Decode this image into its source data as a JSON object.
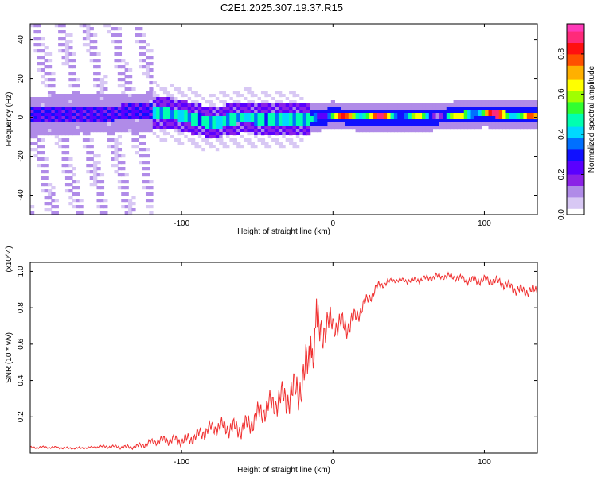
{
  "title": "C2E1.2025.307.19.37.R15",
  "chart_data": [
    {
      "type": "heatmap",
      "xlabel": "Height of straight line (km)",
      "ylabel": "Frequency (Hz)",
      "xlim": [
        -200,
        135
      ],
      "ylim": [
        -50,
        48
      ],
      "x_ticks": [
        -100,
        0,
        100
      ],
      "y_ticks": [
        -40,
        -20,
        0,
        20,
        40
      ],
      "colorbar": {
        "label": "Normalized spectral amplitude",
        "range": [
          0,
          0.95
        ],
        "ticks": [
          0.0,
          0.2,
          0.4,
          0.6,
          0.8
        ],
        "colors": [
          "#ffffff",
          "#d8c8f4",
          "#b08be8",
          "#8b22e6",
          "#5a00ff",
          "#1010ff",
          "#0070ff",
          "#00d8ff",
          "#00ffb0",
          "#30ff30",
          "#a0ff00",
          "#ffff00",
          "#ffb000",
          "#ff5000",
          "#ff1010",
          "#ff2a7a",
          "#ff3ab8"
        ]
      },
      "description_points": {
        "centerline_hz": [
          [
            -200,
            1
          ],
          [
            -150,
            2
          ],
          [
            -120,
            3
          ],
          [
            -100,
            1
          ],
          [
            -80,
            -3
          ],
          [
            -60,
            0
          ],
          [
            -40,
            -1
          ],
          [
            -20,
            -1
          ],
          [
            0,
            1
          ],
          [
            20,
            0
          ],
          [
            40,
            0
          ],
          [
            60,
            0
          ],
          [
            80,
            1
          ],
          [
            100,
            2
          ],
          [
            120,
            1
          ],
          [
            135,
            1
          ]
        ]
      }
    },
    {
      "type": "line",
      "xlabel": "Height of straight line (km)",
      "ylabel": "SNR (10 * v/v)",
      "y_scale_label": "(x10^4)",
      "xlim": [
        -200,
        135
      ],
      "ylim": [
        0.0,
        1.05
      ],
      "x_ticks": [
        -100,
        0,
        100
      ],
      "y_ticks": [
        0.2,
        0.4,
        0.6,
        0.8,
        1.0
      ],
      "y_tick_labels": [
        "0.2",
        "0.4",
        "0.6",
        "0.8",
        "1.0"
      ],
      "series": [
        {
          "name": "SNR",
          "color": "#f03030",
          "envelope": {
            "x": [
              -200,
              -160,
              -130,
              -100,
              -80,
              -60,
              -40,
              -30,
              -20,
              -15,
              -10,
              -5,
              0,
              10,
              20,
              30,
              40,
              60,
              80,
              100,
              120,
              135
            ],
            "base": [
              0.03,
              0.03,
              0.04,
              0.08,
              0.12,
              0.16,
              0.24,
              0.32,
              0.44,
              0.55,
              0.62,
              0.66,
              0.69,
              0.72,
              0.82,
              0.91,
              0.95,
              0.96,
              0.97,
              0.95,
              0.91,
              0.9
            ],
            "noise": [
              0.01,
              0.01,
              0.02,
              0.05,
              0.07,
              0.09,
              0.12,
              0.15,
              0.2,
              0.22,
              0.22,
              0.16,
              0.12,
              0.1,
              0.06,
              0.04,
              0.02,
              0.03,
              0.03,
              0.04,
              0.05,
              0.05
            ]
          }
        }
      ]
    }
  ]
}
